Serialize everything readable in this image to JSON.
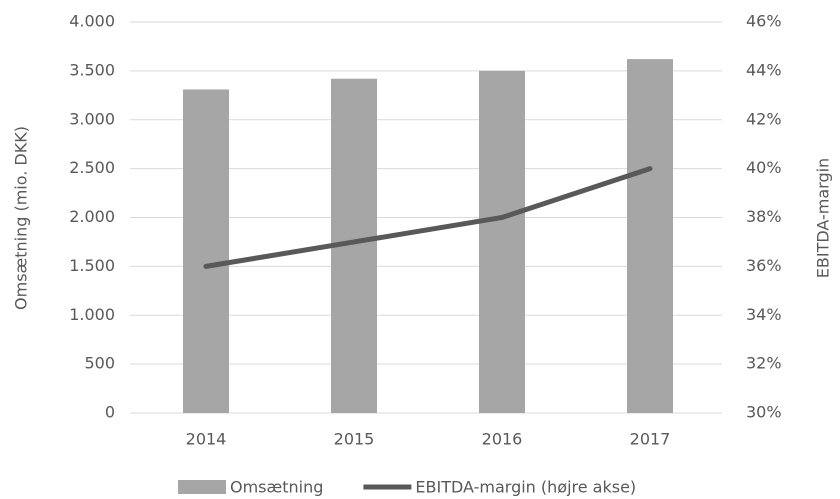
{
  "chart_data": {
    "type": "combo",
    "categories": [
      "2014",
      "2015",
      "2016",
      "2017"
    ],
    "series": [
      {
        "name": "Omsætning",
        "type": "bar",
        "color": "#a6a6a6",
        "values": [
          3310,
          3420,
          3500,
          3620
        ]
      },
      {
        "name": "EBITDA-margin (højre akse)",
        "type": "line",
        "axis": "y2",
        "color": "#595959",
        "values": [
          36,
          37,
          38,
          40
        ]
      }
    ],
    "y_label": "Omsætning (mio. DKK)",
    "y2_label": "EBITDA-margin",
    "ylim": [
      0,
      4000
    ],
    "yticks": [
      0,
      500,
      {
        "value": 1000,
        "label": "1.000"
      },
      {
        "value": 1500,
        "label": "1.500"
      },
      {
        "value": 2000,
        "label": "2.000"
      },
      {
        "value": 2500,
        "label": "2.500"
      },
      {
        "value": 3000,
        "label": "3.000"
      },
      {
        "value": 3500,
        "label": "3.500"
      },
      {
        "value": 4000,
        "label": "4.000"
      }
    ],
    "y2lim": [
      30,
      46
    ],
    "y2ticks": [
      {
        "value": 30,
        "label": "30%"
      },
      {
        "value": 32,
        "label": "32%"
      },
      {
        "value": 34,
        "label": "34%"
      },
      {
        "value": 36,
        "label": "36%"
      },
      {
        "value": 38,
        "label": "38%"
      },
      {
        "value": 40,
        "label": "40%"
      },
      {
        "value": 42,
        "label": "42%"
      },
      {
        "value": 44,
        "label": "44%"
      },
      {
        "value": 46,
        "label": "46%"
      }
    ],
    "grid": true,
    "legend": "bottom"
  }
}
